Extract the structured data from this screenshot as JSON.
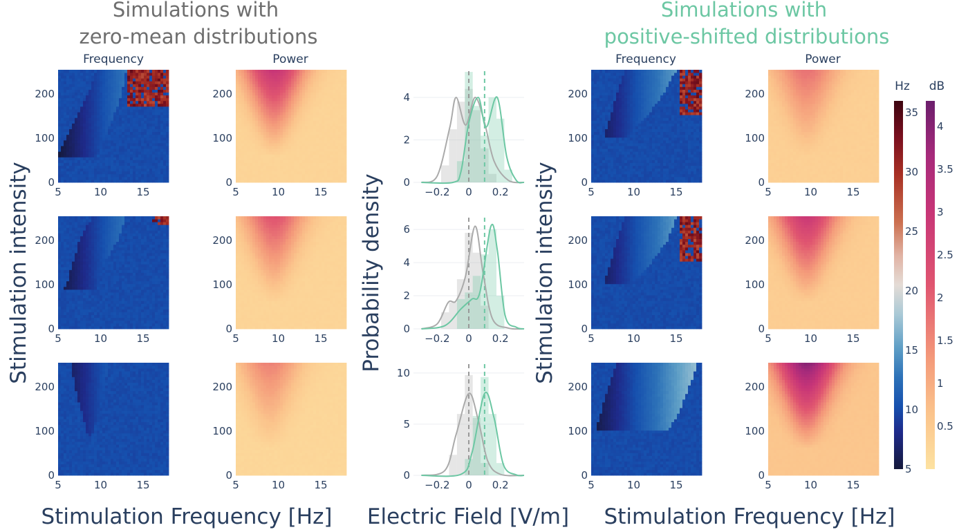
{
  "titles": {
    "left_group": [
      "Simulations with",
      "zero-mean distributions"
    ],
    "right_group": [
      "Simulations with",
      "positive-shifted distributions"
    ],
    "frequency": "Frequency",
    "power": "Power"
  },
  "colors": {
    "left_group_title": "#6e6e6e",
    "right_group_title": "#6cc7a3",
    "zero_mean_curve": "#aaaaaa",
    "shifted_curve": "#6cc7a3",
    "axis_text": "#2a3f5f"
  },
  "axes": {
    "x_stim_freq": "Stimulation Frequency [Hz]",
    "x_efield": "Electric Field [V/m]",
    "y_stim_intensity": "Stimulation intensity",
    "y_prob_density": "Probability density"
  },
  "colorbars": {
    "hz": {
      "label": "Hz",
      "ticks": [
        "35",
        "30",
        "25",
        "20",
        "15",
        "10",
        "5"
      ],
      "range": [
        5,
        36
      ]
    },
    "db": {
      "label": "dB",
      "ticks": [
        "4",
        "3.5",
        "3",
        "2.5",
        "2",
        "1.5",
        "1",
        "0.5"
      ],
      "range": [
        0,
        4.3
      ]
    }
  },
  "chart_data": [
    {
      "type": "heatmap",
      "panel": "zero-mean frequency row 1",
      "x_range": [
        5,
        18
      ],
      "y_range": [
        0,
        255
      ],
      "x_ticks": [
        5,
        10,
        15
      ],
      "y_ticks": [
        0,
        100,
        200
      ],
      "x_tick_labels": [
        "5",
        "10",
        "15"
      ],
      "y_tick_labels": [
        "0",
        "100",
        "200"
      ],
      "boundary_low_freq": [
        [
          0,
          3
        ],
        [
          100,
          6
        ],
        [
          200,
          8.5
        ],
        [
          255,
          9.5
        ]
      ],
      "boundary_high_freq": [
        [
          55,
          9.5
        ],
        [
          100,
          10.5
        ],
        [
          150,
          11.5
        ],
        [
          200,
          12.5
        ],
        [
          255,
          13
        ]
      ],
      "outside_value_hz": 10,
      "high_region": {
        "x_from": 13,
        "y_from": 170,
        "value_hz": 34
      }
    },
    {
      "type": "heatmap",
      "panel": "zero-mean frequency row 2",
      "x_range": [
        5,
        18
      ],
      "y_range": [
        0,
        255
      ],
      "x_ticks": [
        5,
        10,
        15
      ],
      "y_ticks": [
        0,
        100,
        200
      ],
      "x_tick_labels": [
        "5",
        "10",
        "15"
      ],
      "y_tick_labels": [
        "0",
        "100",
        "200"
      ],
      "boundary_low_freq": [
        [
          0,
          3
        ],
        [
          100,
          6
        ],
        [
          200,
          7.5
        ],
        [
          255,
          9
        ]
      ],
      "boundary_high_freq": [
        [
          90,
          9.5
        ],
        [
          150,
          10.5
        ],
        [
          200,
          12
        ],
        [
          255,
          13
        ]
      ],
      "outside_value_hz": 10,
      "high_region": {
        "x_from": 16,
        "y_from": 235,
        "value_hz": 34
      }
    },
    {
      "type": "heatmap",
      "panel": "zero-mean frequency row 3",
      "x_range": [
        5,
        18
      ],
      "y_range": [
        0,
        255
      ],
      "x_ticks": [
        5,
        10,
        15
      ],
      "y_ticks": [
        0,
        100,
        200
      ],
      "x_tick_labels": [
        "5",
        "10",
        "15"
      ],
      "y_tick_labels": [
        "0",
        "100",
        "200"
      ],
      "boundary_low_freq": [
        [
          0,
          3
        ],
        [
          90,
          8.5
        ],
        [
          200,
          7
        ],
        [
          255,
          6.5
        ]
      ],
      "boundary_high_freq": [
        [
          90,
          9
        ],
        [
          200,
          10.5
        ],
        [
          255,
          11
        ]
      ],
      "outside_value_hz": 10,
      "high_region": null
    },
    {
      "type": "heatmap",
      "panel": "zero-mean power row 1",
      "x_range": [
        5,
        18
      ],
      "y_range": [
        0,
        255
      ],
      "x_ticks": [
        5,
        10,
        15
      ],
      "y_ticks": [
        0,
        100,
        200
      ],
      "x_tick_labels": [
        "5",
        "10",
        "15"
      ],
      "y_tick_labels": [
        "0",
        "100",
        "200"
      ],
      "peak_db": 3.0,
      "base_db": 0.3,
      "peak_freq_hz": 9.5
    },
    {
      "type": "heatmap",
      "panel": "zero-mean power row 2",
      "x_range": [
        5,
        18
      ],
      "y_range": [
        0,
        255
      ],
      "x_ticks": [
        5,
        10,
        15
      ],
      "y_ticks": [
        0,
        100,
        200
      ],
      "x_tick_labels": [
        "5",
        "10",
        "15"
      ],
      "y_tick_labels": [
        "0",
        "100",
        "200"
      ],
      "peak_db": 2.2,
      "base_db": 0.3,
      "peak_freq_hz": 9.5
    },
    {
      "type": "heatmap",
      "panel": "zero-mean power row 3",
      "x_range": [
        5,
        18
      ],
      "y_range": [
        0,
        255
      ],
      "x_ticks": [
        5,
        10,
        15
      ],
      "y_ticks": [
        0,
        100,
        200
      ],
      "x_tick_labels": [
        "5",
        "10",
        "15"
      ],
      "y_tick_labels": [
        "0",
        "100",
        "200"
      ],
      "peak_db": 1.6,
      "base_db": 0.25,
      "peak_freq_hz": 9.0
    },
    {
      "type": "line",
      "panel": "electric field distribution row 1",
      "x_range": [
        -0.35,
        0.35
      ],
      "y_range": [
        0,
        5.3
      ],
      "x_ticks": [
        -0.2,
        0,
        0.2
      ],
      "y_ticks": [
        0,
        2,
        4
      ],
      "x_tick_labels": [
        "−0.2",
        "0",
        "0.2"
      ],
      "y_tick_labels": [
        "0",
        "2",
        "4"
      ],
      "vlines": [
        0,
        0.1
      ],
      "histogram_zero_mean": {
        "x": [
          -0.15,
          -0.1,
          -0.05,
          0,
          0.05,
          0.1,
          0.15
        ],
        "y": [
          0.8,
          2.5,
          3.8,
          4.4,
          3.4,
          1.6,
          0.4
        ]
      },
      "histogram_shifted": {
        "x": [
          -0.05,
          0,
          0.05,
          0.1,
          0.15,
          0.2,
          0.25
        ],
        "y": [
          1.0,
          5.2,
          3.6,
          2.2,
          4.0,
          3.0,
          0.6
        ]
      },
      "curve_zero_mean": {
        "x": [
          -0.3,
          -0.2,
          -0.12,
          -0.08,
          -0.02,
          0.04,
          0.1,
          0.16,
          0.25,
          0.35
        ],
        "y": [
          0,
          0.3,
          2.6,
          4.0,
          2.7,
          4.0,
          2.8,
          1.0,
          0.1,
          0
        ]
      },
      "curve_shifted": {
        "x": [
          -0.3,
          -0.1,
          -0.05,
          0,
          0.06,
          0.11,
          0.18,
          0.24,
          0.3,
          0.35
        ],
        "y": [
          0,
          0,
          0.5,
          2.8,
          4.0,
          2.6,
          4.0,
          1.2,
          0.1,
          0
        ]
      }
    },
    {
      "type": "line",
      "panel": "electric field distribution row 2",
      "x_range": [
        -0.35,
        0.35
      ],
      "y_range": [
        0,
        6.8
      ],
      "x_ticks": [
        -0.2,
        0,
        0.2
      ],
      "y_ticks": [
        0,
        2,
        4,
        6
      ],
      "x_tick_labels": [
        "−0.2",
        "0",
        "0.2"
      ],
      "y_tick_labels": [
        "0",
        "2",
        "4",
        "6"
      ],
      "vlines": [
        0,
        0.1
      ],
      "histogram_zero_mean": {
        "x": [
          -0.15,
          -0.1,
          -0.05,
          0,
          0.05,
          0.1
        ],
        "y": [
          1.0,
          1.6,
          3.0,
          5.8,
          4.6,
          1.4
        ]
      },
      "histogram_shifted": {
        "x": [
          -0.05,
          0,
          0.05,
          0.1,
          0.15,
          0.2
        ],
        "y": [
          1.8,
          2.2,
          3.2,
          4.5,
          6.0,
          2.0
        ]
      },
      "curve_zero_mean": {
        "x": [
          -0.3,
          -0.2,
          -0.13,
          -0.08,
          -0.02,
          0.04,
          0.09,
          0.15,
          0.25,
          0.35
        ],
        "y": [
          0,
          0.3,
          1.6,
          1.7,
          3.2,
          6.2,
          3.4,
          0.6,
          0.05,
          0
        ]
      },
      "curve_shifted": {
        "x": [
          -0.3,
          -0.15,
          -0.05,
          0.02,
          0.07,
          0.14,
          0.18,
          0.23,
          0.3,
          0.35
        ],
        "y": [
          0,
          0.2,
          1.2,
          1.8,
          2.2,
          6.2,
          4.8,
          0.8,
          0.1,
          0
        ]
      }
    },
    {
      "type": "line",
      "panel": "electric field distribution row 3",
      "x_range": [
        -0.35,
        0.35
      ],
      "y_range": [
        0,
        11
      ],
      "x_ticks": [
        -0.2,
        0,
        0.2
      ],
      "y_ticks": [
        0,
        5,
        10
      ],
      "x_tick_labels": [
        "−0.2",
        "0",
        "0.2"
      ],
      "y_tick_labels": [
        "0",
        "5",
        "10"
      ],
      "vlines": [
        0,
        0.1
      ],
      "histogram_zero_mean": {
        "x": [
          -0.1,
          -0.05,
          0,
          0.05,
          0.1
        ],
        "y": [
          2.0,
          6.0,
          9.8,
          5.6,
          1.2
        ]
      },
      "histogram_shifted": {
        "x": [
          0,
          0.05,
          0.1,
          0.15,
          0.2
        ],
        "y": [
          1.6,
          5.8,
          9.6,
          6.0,
          1.2
        ]
      },
      "curve_zero_mean": {
        "x": [
          -0.3,
          -0.15,
          -0.08,
          0,
          0.06,
          0.12,
          0.2,
          0.35
        ],
        "y": [
          0,
          0.5,
          4.0,
          8.0,
          5.4,
          1.4,
          0.1,
          0
        ]
      },
      "curve_shifted": {
        "x": [
          -0.3,
          -0.05,
          0.02,
          0.1,
          0.16,
          0.22,
          0.3,
          0.35
        ],
        "y": [
          0,
          0.1,
          2.2,
          8.0,
          5.6,
          1.0,
          0.05,
          0
        ]
      }
    },
    {
      "type": "heatmap",
      "panel": "positive-shifted frequency row 1",
      "x_range": [
        5,
        18
      ],
      "y_range": [
        0,
        255
      ],
      "x_ticks": [
        5,
        10,
        15
      ],
      "y_ticks": [
        0,
        100,
        200
      ],
      "x_tick_labels": [
        "5",
        "10",
        "15"
      ],
      "y_tick_labels": [
        "0",
        "100",
        "200"
      ],
      "boundary_low_freq": [
        [
          0,
          4
        ],
        [
          100,
          6.5
        ],
        [
          200,
          8
        ],
        [
          255,
          9
        ]
      ],
      "boundary_high_freq": [
        [
          100,
          9
        ],
        [
          150,
          11.5
        ],
        [
          200,
          13.5
        ],
        [
          255,
          15
        ]
      ],
      "outside_value_hz": 10,
      "high_region": {
        "x_from": 15.5,
        "y_from": 150,
        "value_hz": 34
      }
    },
    {
      "type": "heatmap",
      "panel": "positive-shifted frequency row 2",
      "x_range": [
        5,
        18
      ],
      "y_range": [
        0,
        255
      ],
      "x_ticks": [
        5,
        10,
        15
      ],
      "y_ticks": [
        0,
        100,
        200
      ],
      "x_tick_labels": [
        "5",
        "10",
        "15"
      ],
      "y_tick_labels": [
        "0",
        "100",
        "200"
      ],
      "boundary_low_freq": [
        [
          0,
          4
        ],
        [
          100,
          6.5
        ],
        [
          200,
          8
        ],
        [
          255,
          9
        ]
      ],
      "boundary_high_freq": [
        [
          100,
          9.5
        ],
        [
          150,
          12
        ],
        [
          200,
          14
        ],
        [
          255,
          15
        ]
      ],
      "outside_value_hz": 10,
      "high_region": {
        "x_from": 15.5,
        "y_from": 150,
        "value_hz": 34
      }
    },
    {
      "type": "heatmap",
      "panel": "positive-shifted frequency row 3",
      "x_range": [
        5,
        18
      ],
      "y_range": [
        0,
        255
      ],
      "x_ticks": [
        5,
        10,
        15
      ],
      "y_ticks": [
        0,
        100,
        200
      ],
      "x_tick_labels": [
        "5",
        "10",
        "15"
      ],
      "y_tick_labels": [
        "0",
        "100",
        "200"
      ],
      "boundary_low_freq": [
        [
          0,
          3
        ],
        [
          100,
          5.5
        ],
        [
          200,
          7
        ],
        [
          255,
          8
        ]
      ],
      "boundary_high_freq": [
        [
          100,
          14
        ],
        [
          150,
          15.5
        ],
        [
          200,
          16.5
        ],
        [
          255,
          17.5
        ]
      ],
      "outside_value_hz": 10,
      "high_region": null
    },
    {
      "type": "heatmap",
      "panel": "positive-shifted power row 1",
      "x_range": [
        5,
        18
      ],
      "y_range": [
        0,
        255
      ],
      "x_ticks": [
        5,
        10,
        15
      ],
      "y_ticks": [
        0,
        100,
        200
      ],
      "x_tick_labels": [
        "5",
        "10",
        "15"
      ],
      "y_tick_labels": [
        "0",
        "100",
        "200"
      ],
      "peak_db": 1.8,
      "base_db": 0.4,
      "peak_freq_hz": 9.5
    },
    {
      "type": "heatmap",
      "panel": "positive-shifted power row 2",
      "x_range": [
        5,
        18
      ],
      "y_range": [
        0,
        255
      ],
      "x_ticks": [
        5,
        10,
        15
      ],
      "y_ticks": [
        0,
        100,
        200
      ],
      "x_tick_labels": [
        "5",
        "10",
        "15"
      ],
      "y_tick_labels": [
        "0",
        "100",
        "200"
      ],
      "peak_db": 2.9,
      "base_db": 0.45,
      "peak_freq_hz": 9.5
    },
    {
      "type": "heatmap",
      "panel": "positive-shifted power row 3",
      "x_range": [
        5,
        18
      ],
      "y_range": [
        0,
        255
      ],
      "x_ticks": [
        5,
        10,
        15
      ],
      "y_ticks": [
        0,
        100,
        200
      ],
      "x_tick_labels": [
        "5",
        "10",
        "15"
      ],
      "y_tick_labels": [
        "0",
        "100",
        "200"
      ],
      "peak_db": 4.0,
      "base_db": 0.6,
      "peak_freq_hz": 9.5
    }
  ]
}
